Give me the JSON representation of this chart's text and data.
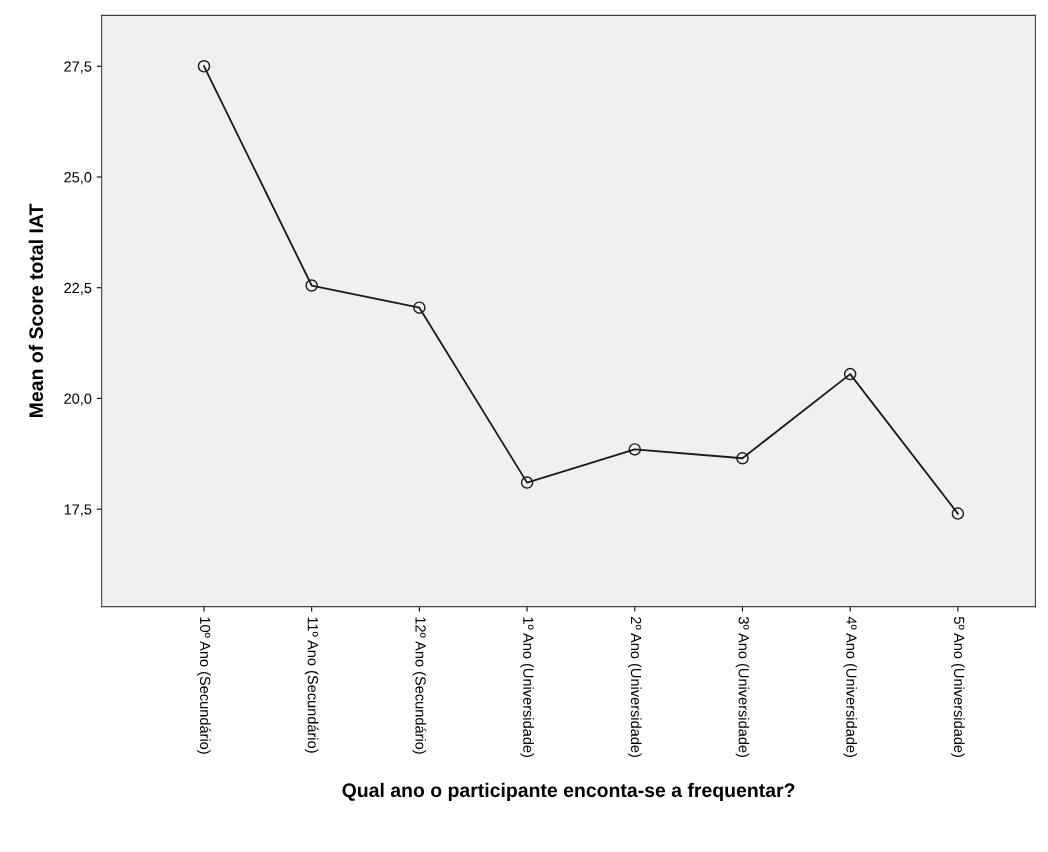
{
  "chart_data": {
    "type": "line",
    "xlabel": "Qual ano o participante enconta-se a frequentar?",
    "ylabel": "Mean of Score total IAT",
    "categories": [
      "10º Ano (Secundário)",
      "11º Ano (Secundário)",
      "12º Ano (Secundário)",
      "1º Ano (Universidade)",
      "2º Ano (Universidade)",
      "3º Ano (Universidade)",
      "4º Ano (Universidade)",
      "5º Ano (Universidade)"
    ],
    "series": [
      {
        "color": "#1a1a1a",
        "values": [
          27.5,
          22.55,
          22.05,
          18.1,
          18.85,
          18.65,
          20.55,
          17.4
        ]
      }
    ],
    "ylim": [
      15.3,
      28.65
    ],
    "yticks": [
      {
        "value": 17.5,
        "label": "17,5"
      },
      {
        "value": 20.0,
        "label": "20,0"
      },
      {
        "value": 22.5,
        "label": "22,5"
      },
      {
        "value": 25.0,
        "label": "25,0"
      },
      {
        "value": 27.5,
        "label": "27,5"
      }
    ],
    "marker": "circle",
    "line_style": "solid"
  }
}
